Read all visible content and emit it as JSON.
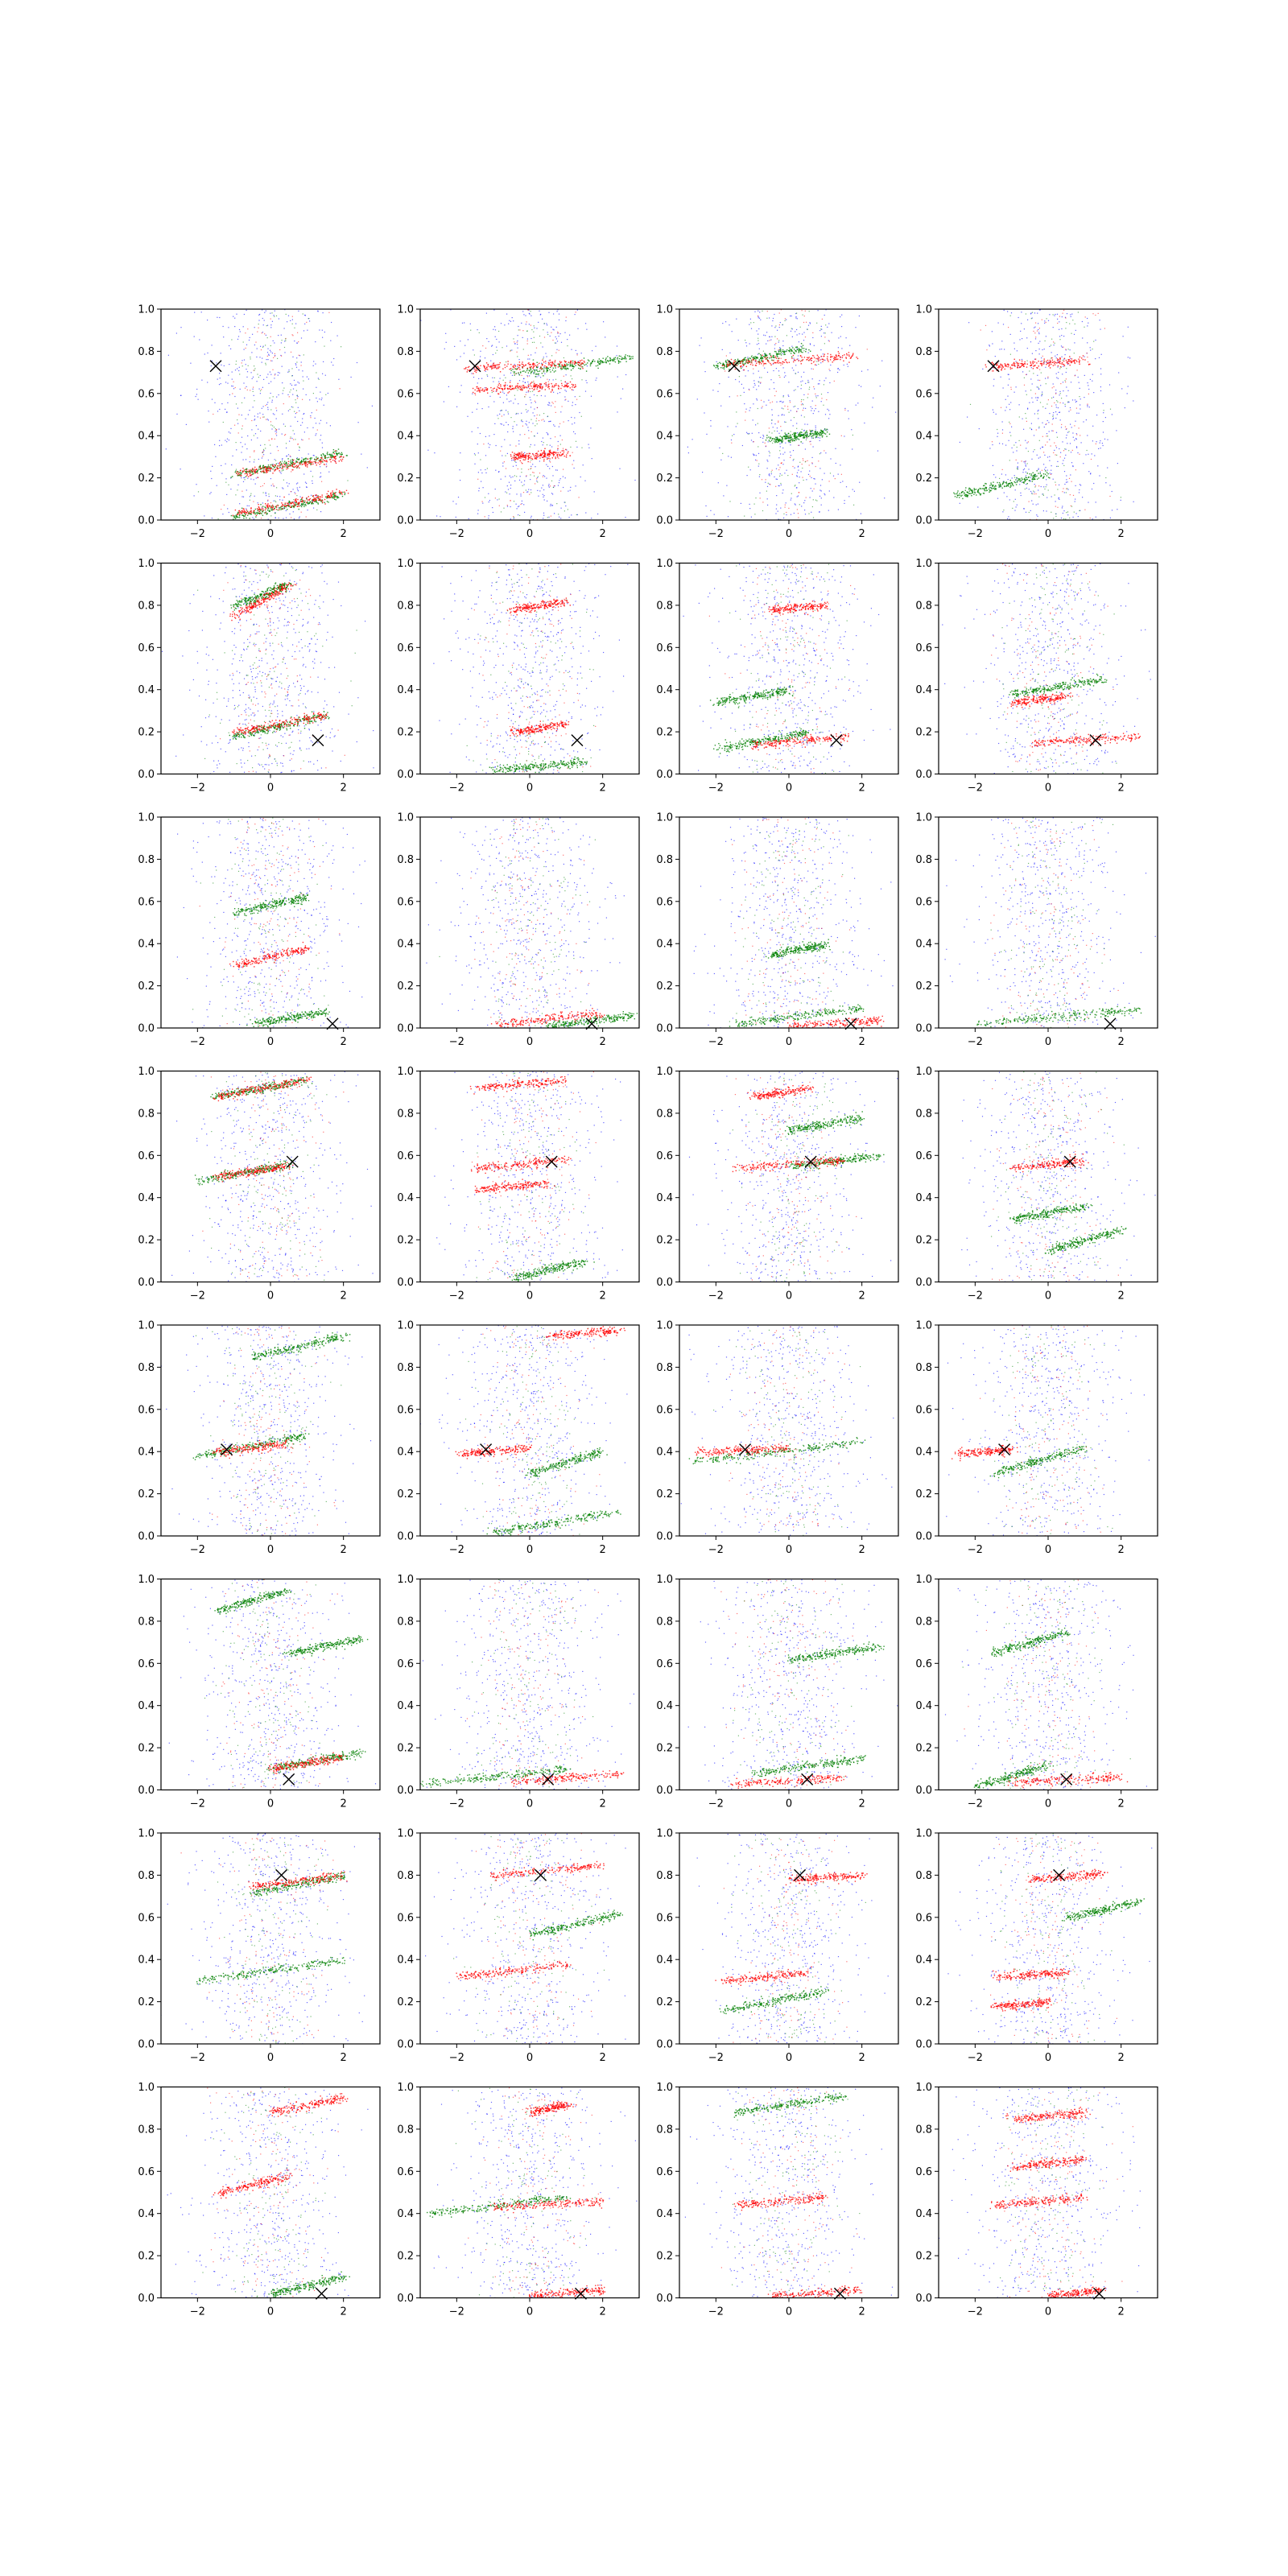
{
  "figure": {
    "rows": 8,
    "cols": 4,
    "series_colors": {
      "background": "#0000ff",
      "red": "#ff0000",
      "green": "#008000",
      "marker": "#000000"
    }
  },
  "chart_data": {
    "type": "scatter",
    "title": "",
    "xlabel": "",
    "ylabel": "",
    "xlim": [
      -3,
      3
    ],
    "ylim": [
      0,
      1
    ],
    "x_ticks": [
      -2,
      0,
      2
    ],
    "y_ticks": [
      0.0,
      0.2,
      0.4,
      0.6,
      0.8,
      1.0
    ],
    "x_tick_labels": [
      "−2",
      "0",
      "2"
    ],
    "y_tick_labels": [
      "0.0",
      "0.2",
      "0.4",
      "0.6",
      "0.8",
      "1.0"
    ],
    "grid": false,
    "legend": "none",
    "marker_style": "x",
    "markers": [
      {
        "row": 1,
        "x": -1.5,
        "y": 0.73
      },
      {
        "row": 2,
        "x": 1.3,
        "y": 0.16
      },
      {
        "row": 3,
        "x": 1.7,
        "y": 0.02
      },
      {
        "row": 4,
        "x": 0.6,
        "y": 0.57
      },
      {
        "row": 5,
        "x": -1.2,
        "y": 0.41
      },
      {
        "row": 6,
        "x": 0.5,
        "y": 0.05
      },
      {
        "row": 7,
        "x": 0.3,
        "y": 0.8
      },
      {
        "row": 8,
        "x": 1.4,
        "y": 0.02
      }
    ],
    "panels": [
      {
        "row": 1,
        "col": 1,
        "bands": [
          {
            "c": "green",
            "x0": -1,
            "x1": 2,
            "y0": 0.02,
            "y1": 0.12
          },
          {
            "c": "red",
            "x0": -1,
            "x1": 2,
            "y0": 0.03,
            "y1": 0.13
          },
          {
            "c": "green",
            "x0": -1,
            "x1": 2,
            "y0": 0.22,
            "y1": 0.32
          },
          {
            "c": "red",
            "x0": -1,
            "x1": 2,
            "y0": 0.22,
            "y1": 0.3
          }
        ]
      },
      {
        "row": 1,
        "col": 2,
        "bands": [
          {
            "c": "red",
            "x0": -1.8,
            "x1": 1.5,
            "y0": 0.72,
            "y1": 0.75
          },
          {
            "c": "green",
            "x0": -0.5,
            "x1": 2.8,
            "y0": 0.7,
            "y1": 0.77
          },
          {
            "c": "red",
            "x0": -1.5,
            "x1": 1.2,
            "y0": 0.62,
            "y1": 0.64
          },
          {
            "c": "red",
            "x0": -0.5,
            "x1": 1,
            "y0": 0.3,
            "y1": 0.32
          }
        ]
      },
      {
        "row": 1,
        "col": 3,
        "bands": [
          {
            "c": "red",
            "x0": -1.8,
            "x1": 1.8,
            "y0": 0.74,
            "y1": 0.78
          },
          {
            "c": "green",
            "x0": -2,
            "x1": 0.5,
            "y0": 0.73,
            "y1": 0.82
          },
          {
            "c": "green",
            "x0": -0.5,
            "x1": 1,
            "y0": 0.38,
            "y1": 0.42
          }
        ]
      },
      {
        "row": 1,
        "col": 4,
        "bands": [
          {
            "c": "red",
            "x0": -1.6,
            "x1": 1,
            "y0": 0.73,
            "y1": 0.76
          },
          {
            "c": "green",
            "x0": -2.5,
            "x1": 0,
            "y0": 0.12,
            "y1": 0.22
          }
        ]
      },
      {
        "row": 2,
        "col": 1,
        "bands": [
          {
            "c": "green",
            "x0": -1,
            "x1": 1.5,
            "y0": 0.18,
            "y1": 0.28
          },
          {
            "c": "red",
            "x0": -1,
            "x1": 1.5,
            "y0": 0.2,
            "y1": 0.28
          },
          {
            "c": "red",
            "x0": -1,
            "x1": 0.5,
            "y0": 0.75,
            "y1": 0.9
          },
          {
            "c": "green",
            "x0": -1,
            "x1": 0.5,
            "y0": 0.8,
            "y1": 0.9
          }
        ]
      },
      {
        "row": 2,
        "col": 2,
        "bands": [
          {
            "c": "red",
            "x0": -0.5,
            "x1": 1,
            "y0": 0.78,
            "y1": 0.82
          },
          {
            "c": "green",
            "x0": -1,
            "x1": 1.5,
            "y0": 0.02,
            "y1": 0.06
          },
          {
            "c": "red",
            "x0": -0.5,
            "x1": 1,
            "y0": 0.2,
            "y1": 0.24
          }
        ]
      },
      {
        "row": 2,
        "col": 3,
        "bands": [
          {
            "c": "red",
            "x0": -1,
            "x1": 1.6,
            "y0": 0.14,
            "y1": 0.18
          },
          {
            "c": "green",
            "x0": -2,
            "x1": 0.5,
            "y0": 0.12,
            "y1": 0.2
          },
          {
            "c": "green",
            "x0": -2,
            "x1": 0,
            "y0": 0.34,
            "y1": 0.4
          },
          {
            "c": "red",
            "x0": -0.5,
            "x1": 1,
            "y0": 0.78,
            "y1": 0.8
          }
        ]
      },
      {
        "row": 2,
        "col": 4,
        "bands": [
          {
            "c": "red",
            "x0": -0.5,
            "x1": 2.5,
            "y0": 0.15,
            "y1": 0.18
          },
          {
            "c": "red",
            "x0": -1,
            "x1": 0.5,
            "y0": 0.34,
            "y1": 0.37
          },
          {
            "c": "green",
            "x0": -1,
            "x1": 1.5,
            "y0": 0.38,
            "y1": 0.45
          }
        ]
      },
      {
        "row": 3,
        "col": 1,
        "bands": [
          {
            "c": "green",
            "x0": -1,
            "x1": 1,
            "y0": 0.55,
            "y1": 0.62
          },
          {
            "c": "red",
            "x0": -1,
            "x1": 1,
            "y0": 0.3,
            "y1": 0.38
          },
          {
            "c": "green",
            "x0": -0.5,
            "x1": 1.5,
            "y0": 0.02,
            "y1": 0.08
          }
        ]
      },
      {
        "row": 3,
        "col": 2,
        "bands": [
          {
            "c": "red",
            "x0": -1,
            "x1": 2,
            "y0": 0.02,
            "y1": 0.07
          },
          {
            "c": "green",
            "x0": 0.5,
            "x1": 2.8,
            "y0": 0.01,
            "y1": 0.06
          }
        ]
      },
      {
        "row": 3,
        "col": 3,
        "bands": [
          {
            "c": "green",
            "x0": -1.5,
            "x1": 2,
            "y0": 0.02,
            "y1": 0.1
          },
          {
            "c": "red",
            "x0": 0,
            "x1": 2.5,
            "y0": 0.01,
            "y1": 0.04
          },
          {
            "c": "green",
            "x0": -0.5,
            "x1": 1,
            "y0": 0.35,
            "y1": 0.4
          }
        ]
      },
      {
        "row": 3,
        "col": 4,
        "bands": [
          {
            "c": "green",
            "x0": -2,
            "x1": 2.5,
            "y0": 0.02,
            "y1": 0.09
          }
        ]
      },
      {
        "row": 4,
        "col": 1,
        "bands": [
          {
            "c": "green",
            "x0": -2,
            "x1": 0.5,
            "y0": 0.48,
            "y1": 0.56
          },
          {
            "c": "red",
            "x0": -1.5,
            "x1": 0.5,
            "y0": 0.5,
            "y1": 0.55
          },
          {
            "c": "red",
            "x0": -1.5,
            "x1": 1,
            "y0": 0.88,
            "y1": 0.96
          },
          {
            "c": "green",
            "x0": -1.5,
            "x1": 1,
            "y0": 0.88,
            "y1": 0.96
          }
        ]
      },
      {
        "row": 4,
        "col": 2,
        "bands": [
          {
            "c": "red",
            "x0": -1.5,
            "x1": 1,
            "y0": 0.92,
            "y1": 0.96
          },
          {
            "c": "red",
            "x0": -1.5,
            "x1": 1,
            "y0": 0.54,
            "y1": 0.58
          },
          {
            "c": "red",
            "x0": -1.5,
            "x1": 0.5,
            "y0": 0.44,
            "y1": 0.47
          },
          {
            "c": "green",
            "x0": -0.5,
            "x1": 1.5,
            "y0": 0.02,
            "y1": 0.1
          }
        ]
      },
      {
        "row": 4,
        "col": 3,
        "bands": [
          {
            "c": "red",
            "x0": -1.5,
            "x1": 1.5,
            "y0": 0.54,
            "y1": 0.58
          },
          {
            "c": "green",
            "x0": 0,
            "x1": 2.5,
            "y0": 0.55,
            "y1": 0.6
          },
          {
            "c": "green",
            "x0": 0,
            "x1": 2,
            "y0": 0.72,
            "y1": 0.78
          },
          {
            "c": "red",
            "x0": -1,
            "x1": 0.5,
            "y0": 0.88,
            "y1": 0.92
          }
        ]
      },
      {
        "row": 4,
        "col": 4,
        "bands": [
          {
            "c": "red",
            "x0": -1,
            "x1": 1,
            "y0": 0.54,
            "y1": 0.58
          },
          {
            "c": "green",
            "x0": 0,
            "x1": 2,
            "y0": 0.15,
            "y1": 0.25
          },
          {
            "c": "green",
            "x0": -1,
            "x1": 1,
            "y0": 0.3,
            "y1": 0.36
          }
        ]
      },
      {
        "row": 5,
        "col": 1,
        "bands": [
          {
            "c": "green",
            "x0": -2,
            "x1": 1,
            "y0": 0.38,
            "y1": 0.48
          },
          {
            "c": "red",
            "x0": -1.5,
            "x1": 0.5,
            "y0": 0.4,
            "y1": 0.44
          },
          {
            "c": "green",
            "x0": -0.5,
            "x1": 2,
            "y0": 0.85,
            "y1": 0.95
          }
        ]
      },
      {
        "row": 5,
        "col": 2,
        "bands": [
          {
            "c": "red",
            "x0": -2,
            "x1": 0,
            "y0": 0.39,
            "y1": 0.42
          },
          {
            "c": "red",
            "x0": 0.5,
            "x1": 2.5,
            "y0": 0.95,
            "y1": 0.98
          },
          {
            "c": "green",
            "x0": -1,
            "x1": 2.5,
            "y0": 0.02,
            "y1": 0.12
          },
          {
            "c": "green",
            "x0": 0,
            "x1": 2,
            "y0": 0.3,
            "y1": 0.4
          }
        ]
      },
      {
        "row": 5,
        "col": 3,
        "bands": [
          {
            "c": "red",
            "x0": -2.5,
            "x1": 0,
            "y0": 0.4,
            "y1": 0.42
          },
          {
            "c": "green",
            "x0": -2.8,
            "x1": 2,
            "y0": 0.35,
            "y1": 0.45
          }
        ]
      },
      {
        "row": 5,
        "col": 4,
        "bands": [
          {
            "c": "red",
            "x0": -2.5,
            "x1": -1,
            "y0": 0.39,
            "y1": 0.41
          },
          {
            "c": "green",
            "x0": -1.5,
            "x1": 1,
            "y0": 0.3,
            "y1": 0.42
          }
        ]
      },
      {
        "row": 6,
        "col": 1,
        "bands": [
          {
            "c": "green",
            "x0": 0,
            "x1": 2.5,
            "y0": 0.1,
            "y1": 0.18
          },
          {
            "c": "red",
            "x0": 0,
            "x1": 2,
            "y0": 0.1,
            "y1": 0.16
          },
          {
            "c": "green",
            "x0": 0.5,
            "x1": 2.5,
            "y0": 0.65,
            "y1": 0.72
          },
          {
            "c": "green",
            "x0": -1.5,
            "x1": 0.5,
            "y0": 0.85,
            "y1": 0.95
          }
        ]
      },
      {
        "row": 6,
        "col": 2,
        "bands": [
          {
            "c": "green",
            "x0": -3,
            "x1": 1,
            "y0": 0.03,
            "y1": 0.1
          },
          {
            "c": "red",
            "x0": -0.5,
            "x1": 2.5,
            "y0": 0.04,
            "y1": 0.08
          }
        ]
      },
      {
        "row": 6,
        "col": 3,
        "bands": [
          {
            "c": "red",
            "x0": -1.5,
            "x1": 1.5,
            "y0": 0.03,
            "y1": 0.06
          },
          {
            "c": "green",
            "x0": 0,
            "x1": 2.5,
            "y0": 0.62,
            "y1": 0.68
          },
          {
            "c": "green",
            "x0": -1,
            "x1": 2,
            "y0": 0.08,
            "y1": 0.15
          }
        ]
      },
      {
        "row": 6,
        "col": 4,
        "bands": [
          {
            "c": "red",
            "x0": -1,
            "x1": 2,
            "y0": 0.04,
            "y1": 0.06
          },
          {
            "c": "green",
            "x0": -2,
            "x1": 0,
            "y0": 0.02,
            "y1": 0.12
          },
          {
            "c": "green",
            "x0": -1.5,
            "x1": 0.5,
            "y0": 0.65,
            "y1": 0.75
          }
        ]
      },
      {
        "row": 7,
        "col": 1,
        "bands": [
          {
            "c": "green",
            "x0": -2,
            "x1": 2,
            "y0": 0.3,
            "y1": 0.4
          },
          {
            "c": "red",
            "x0": -0.5,
            "x1": 2,
            "y0": 0.75,
            "y1": 0.8
          },
          {
            "c": "green",
            "x0": -0.5,
            "x1": 2,
            "y0": 0.72,
            "y1": 0.8
          }
        ]
      },
      {
        "row": 7,
        "col": 2,
        "bands": [
          {
            "c": "red",
            "x0": -1,
            "x1": 2,
            "y0": 0.8,
            "y1": 0.85
          },
          {
            "c": "red",
            "x0": -2,
            "x1": 1,
            "y0": 0.32,
            "y1": 0.38
          },
          {
            "c": "green",
            "x0": 0,
            "x1": 2.5,
            "y0": 0.52,
            "y1": 0.62
          }
        ]
      },
      {
        "row": 7,
        "col": 3,
        "bands": [
          {
            "c": "red",
            "x0": 0,
            "x1": 2,
            "y0": 0.78,
            "y1": 0.8
          },
          {
            "c": "red",
            "x0": -1.8,
            "x1": 0.5,
            "y0": 0.3,
            "y1": 0.34
          },
          {
            "c": "green",
            "x0": -1.8,
            "x1": 1,
            "y0": 0.16,
            "y1": 0.25
          }
        ]
      },
      {
        "row": 7,
        "col": 4,
        "bands": [
          {
            "c": "red",
            "x0": -0.5,
            "x1": 1.5,
            "y0": 0.78,
            "y1": 0.81
          },
          {
            "c": "green",
            "x0": 0.5,
            "x1": 2.5,
            "y0": 0.6,
            "y1": 0.68
          },
          {
            "c": "red",
            "x0": -1.5,
            "x1": 0.5,
            "y0": 0.32,
            "y1": 0.34
          },
          {
            "c": "red",
            "x0": -1.5,
            "x1": 0,
            "y0": 0.18,
            "y1": 0.2
          }
        ]
      },
      {
        "row": 8,
        "col": 1,
        "bands": [
          {
            "c": "green",
            "x0": 0,
            "x1": 2,
            "y0": 0.02,
            "y1": 0.1
          },
          {
            "c": "red",
            "x0": 0,
            "x1": 2,
            "y0": 0.88,
            "y1": 0.95
          },
          {
            "c": "red",
            "x0": -1.5,
            "x1": 0.5,
            "y0": 0.5,
            "y1": 0.58
          }
        ]
      },
      {
        "row": 8,
        "col": 2,
        "bands": [
          {
            "c": "green",
            "x0": -2.8,
            "x1": 1,
            "y0": 0.4,
            "y1": 0.48
          },
          {
            "c": "red",
            "x0": -1,
            "x1": 2,
            "y0": 0.43,
            "y1": 0.46
          },
          {
            "c": "red",
            "x0": 0,
            "x1": 2,
            "y0": 0.01,
            "y1": 0.04
          },
          {
            "c": "red",
            "x0": 0,
            "x1": 1,
            "y0": 0.88,
            "y1": 0.92
          }
        ]
      },
      {
        "row": 8,
        "col": 3,
        "bands": [
          {
            "c": "red",
            "x0": -1.5,
            "x1": 1,
            "y0": 0.44,
            "y1": 0.48
          },
          {
            "c": "red",
            "x0": -0.5,
            "x1": 2,
            "y0": 0.01,
            "y1": 0.04
          },
          {
            "c": "green",
            "x0": -1.5,
            "x1": 1.5,
            "y0": 0.88,
            "y1": 0.96
          }
        ]
      },
      {
        "row": 8,
        "col": 4,
        "bands": [
          {
            "c": "red",
            "x0": -1.5,
            "x1": 1,
            "y0": 0.44,
            "y1": 0.48
          },
          {
            "c": "red",
            "x0": 0,
            "x1": 1.5,
            "y0": 0.01,
            "y1": 0.04
          },
          {
            "c": "red",
            "x0": -1,
            "x1": 1,
            "y0": 0.85,
            "y1": 0.88
          },
          {
            "c": "red",
            "x0": -1,
            "x1": 1,
            "y0": 0.62,
            "y1": 0.66
          }
        ]
      }
    ]
  }
}
